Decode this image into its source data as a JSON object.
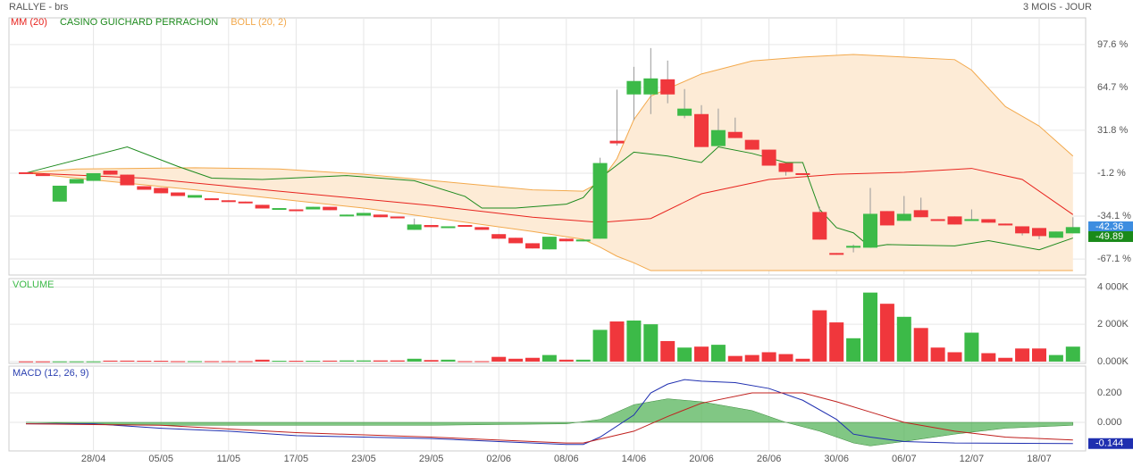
{
  "chart_data": [
    {
      "type": "candlestick",
      "title": "RALLYE - brs",
      "subtitle": "3 MOIS - JOUR",
      "categories": [
        null,
        null,
        null,
        null,
        "28/04",
        null,
        null,
        null,
        "05/05",
        null,
        null,
        null,
        "11/05",
        null,
        null,
        null,
        "17/05",
        null,
        null,
        null,
        "23/05",
        null,
        null,
        null,
        "29/05",
        null,
        null,
        null,
        "02/06",
        null,
        null,
        null,
        "08/06",
        null,
        null,
        null,
        "14/06",
        null,
        null,
        null,
        "20/06",
        null,
        null,
        null,
        "26/06",
        null,
        null,
        null,
        "30/06",
        null,
        null,
        null,
        "06/07",
        null,
        null,
        null,
        "12/07",
        null,
        null,
        null,
        "18/07",
        null,
        null
      ],
      "open": [
        -0.5,
        -2,
        -23,
        -9.1,
        -7.1,
        0.8,
        -2.3,
        -11.2,
        -12.5,
        -16,
        -20,
        -20.5,
        -22,
        -23,
        -25.5,
        -28.5,
        -29,
        -29,
        -27,
        -33.5,
        -33.8,
        -33,
        -34.5,
        -44.7,
        -41,
        -43.3,
        -41,
        -42.6,
        -48,
        -50.8,
        -55,
        -59.7,
        -51.5,
        -53.5,
        -51.5,
        23.7,
        59.3,
        59.3,
        70.9,
        42.9,
        44.2,
        19.6,
        30.5,
        24.4,
        16.9,
        6.6,
        -1.2,
        -31,
        -62.5,
        -58.4,
        -58.4,
        -30.3,
        -37.8,
        -29.6,
        -36.5,
        -34.4,
        -37.8,
        -36.5,
        -39.9,
        -42,
        -43.3,
        -50.8,
        -47.4
      ],
      "high": [
        -0.5,
        -2,
        -10.8,
        -5.7,
        -1.2,
        0.8,
        -2.3,
        -11.2,
        -12.5,
        -16,
        -18,
        -20.5,
        -22,
        -23,
        -25.5,
        -28,
        -29,
        -27,
        -27,
        -33,
        -31.7,
        -33,
        -34.5,
        -36,
        -41,
        -42,
        -41,
        -42.6,
        -48,
        -50.8,
        -55,
        -50,
        -51.5,
        -52.2,
        10.7,
        63,
        80.5,
        94.9,
        85.3,
        63.4,
        51.1,
        48.4,
        41.5,
        24.4,
        16.9,
        6.6,
        -1.2,
        -27,
        -62.5,
        -56,
        -12.5,
        -30.3,
        -18.7,
        -20,
        -36.5,
        -34.4,
        -29,
        -36.5,
        -39.9,
        -42,
        -43.3,
        -46,
        -35
      ],
      "low": [
        -1.5,
        -2.5,
        -23,
        -9.1,
        -7.1,
        -2.3,
        -10.5,
        -13.9,
        -16.6,
        -18.7,
        -20,
        -21.5,
        -22.5,
        -24,
        -28.3,
        -28.5,
        -29.3,
        -29,
        -29.6,
        -33.5,
        -33.8,
        -35,
        -35.8,
        -44.7,
        -42.6,
        -43.3,
        -42,
        -44.7,
        -51.5,
        -55,
        -59,
        -59.7,
        -53.5,
        -53.5,
        -51.5,
        20,
        39.5,
        44.2,
        52.5,
        41,
        18.9,
        19.6,
        25.8,
        16.9,
        4.6,
        -3,
        -1.5,
        -52.2,
        -63.8,
        -62,
        -58.4,
        -41.3,
        -37.8,
        -35,
        -37,
        -40.6,
        -37.8,
        -39.2,
        -41.3,
        -49,
        -52,
        -50.8,
        -47.4
      ],
      "close": [
        -1.5,
        -2.5,
        -10.8,
        -5.7,
        -1.2,
        -2.3,
        -10.5,
        -13.9,
        -16.6,
        -18.7,
        -18,
        -21.5,
        -22.5,
        -24,
        -28.3,
        -28,
        -29.3,
        -27,
        -29.6,
        -33,
        -31.7,
        -35,
        -35.8,
        -40.6,
        -42.6,
        -42,
        -42,
        -44.7,
        -51.5,
        -55,
        -59,
        -50,
        -53.5,
        -52.2,
        6.6,
        21.7,
        69.6,
        71.6,
        59.3,
        48.4,
        18.9,
        31.9,
        25.8,
        16.9,
        4.6,
        -0.2,
        -1.5,
        -52.2,
        -63.8,
        -57,
        -32.4,
        -41.3,
        -32.4,
        -35,
        -37,
        -40.6,
        -36.5,
        -39.2,
        -41.3,
        -47.4,
        -49.5,
        -46,
        -42.6
      ],
      "up_color": "#3cba48",
      "down_color": "#f0373c",
      "series": [
        {
          "name": "MM (20)",
          "color": "#e8231e",
          "x": [
            0,
            7,
            15,
            24,
            30,
            34,
            37,
            40,
            44,
            48,
            52,
            56,
            59,
            62
          ],
          "values": [
            -1,
            -5,
            -15,
            -26,
            -35,
            -39,
            -36,
            -17,
            -6,
            -2,
            -0.5,
            2.5,
            -6,
            -33
          ]
        },
        {
          "name": "CASINO GUICHARD PERRACHON",
          "color": "#1d8a1d",
          "x": [
            0,
            6,
            9,
            11,
            14,
            19,
            23,
            26,
            27,
            29,
            32,
            33,
            34,
            36,
            38,
            40,
            41,
            43,
            45,
            46,
            47,
            48,
            49,
            50,
            51,
            55,
            57,
            60,
            62
          ],
          "values": [
            -1,
            19,
            4,
            -5,
            -6,
            -3,
            -7,
            -19,
            -28,
            -28,
            -25,
            -20,
            -5,
            15,
            12,
            7,
            19,
            14,
            7,
            7,
            -29,
            -43,
            -47,
            -58,
            -56,
            -57,
            -53,
            -60,
            -51
          ]
        },
        {
          "name": "BOLL (20, 2)",
          "color": "#f3a94c",
          "fill": "#fdebd6",
          "x": [
            0,
            3,
            10,
            15,
            20,
            25,
            30,
            33,
            34,
            35,
            36,
            37,
            40,
            43,
            46,
            49,
            52,
            55,
            56,
            58,
            60,
            62
          ],
          "upper": [
            -1,
            2,
            3,
            2,
            -2,
            -8,
            -14,
            -15,
            -8,
            10,
            40,
            58,
            75,
            85,
            88,
            90,
            88,
            86,
            78,
            50,
            35,
            12
          ],
          "lower": [
            -1,
            -5,
            -14,
            -21,
            -28,
            -37,
            -46,
            -52,
            -58,
            -65,
            -70,
            -76,
            -76,
            -76,
            -76,
            -76,
            -76,
            -76,
            -76,
            -76,
            -76,
            -76
          ]
        }
      ],
      "ylim": [
        -79.4,
        118.1
      ],
      "yticks": [
        {
          "value": 97.6,
          "label": "97.6 %"
        },
        {
          "value": 64.7,
          "label": "64.7 %"
        },
        {
          "value": 31.8,
          "label": "31.8 %"
        },
        {
          "value": -1.2,
          "label": "-1.2 %"
        },
        {
          "value": -34.1,
          "label": "-34.1 %"
        },
        {
          "value": -67.1,
          "label": "-67.1 %"
        }
      ],
      "last_labels": [
        {
          "value": -42.36,
          "color": "#3d8de0"
        },
        {
          "value": -49.89,
          "color": "#1a8a1a"
        }
      ],
      "grid": true
    },
    {
      "type": "bar",
      "title": "VOLUME",
      "title_color": "#3cba48",
      "values": [
        10,
        10,
        10,
        10,
        10,
        50,
        50,
        40,
        40,
        20,
        20,
        20,
        20,
        20,
        100,
        40,
        40,
        40,
        50,
        60,
        60,
        60,
        60,
        150,
        80,
        100,
        20,
        20,
        250,
        150,
        200,
        350,
        100,
        100,
        1700,
        2150,
        2200,
        2000,
        1100,
        750,
        800,
        900,
        300,
        350,
        500,
        400,
        150,
        2750,
        2100,
        1250,
        3700,
        3100,
        2400,
        1800,
        750,
        500,
        1550,
        450,
        200,
        700,
        700,
        350,
        800
      ],
      "ylim": [
        -100,
        4450
      ],
      "yticks": [
        {
          "value": 4000,
          "label": "4 000K"
        },
        {
          "value": 2000,
          "label": "2 000K"
        },
        {
          "value": 0,
          "label": "0.000K"
        }
      ],
      "grid": true
    },
    {
      "type": "macd",
      "title": "MACD (12, 26, 9)",
      "title_color": "#2a3fb0",
      "series": [
        {
          "name": "MACD",
          "color": "#1f2fb0",
          "x": [
            0,
            4,
            8,
            12,
            16,
            20,
            24,
            28,
            32,
            33,
            34,
            36,
            37,
            38,
            39,
            40,
            42,
            44,
            46,
            48,
            49,
            50,
            52,
            55,
            62
          ],
          "values": [
            -0.01,
            -0.01,
            -0.04,
            -0.06,
            -0.09,
            -0.1,
            -0.11,
            -0.13,
            -0.15,
            -0.15,
            -0.1,
            0.05,
            0.2,
            0.26,
            0.29,
            0.28,
            0.27,
            0.23,
            0.15,
            0.02,
            -0.08,
            -0.1,
            -0.13,
            -0.14,
            -0.144
          ]
        },
        {
          "name": "Signal",
          "color": "#c0201e",
          "x": [
            0,
            8,
            16,
            24,
            32,
            33,
            36,
            38,
            40,
            43,
            46,
            48,
            50,
            52,
            55,
            58,
            62
          ],
          "values": [
            -0.01,
            -0.02,
            -0.07,
            -0.1,
            -0.14,
            -0.14,
            -0.06,
            0.04,
            0.13,
            0.2,
            0.2,
            0.14,
            0.07,
            0,
            -0.06,
            -0.1,
            -0.12
          ]
        },
        {
          "name": "Histogram",
          "color": "#4caf50",
          "x": [
            0,
            8,
            16,
            24,
            32,
            34,
            36,
            38,
            40,
            43,
            45,
            47,
            49,
            50,
            52,
            55,
            58,
            62
          ],
          "values": [
            0,
            -0.02,
            -0.02,
            -0.02,
            -0.01,
            0.02,
            0.12,
            0.16,
            0.14,
            0.08,
            0,
            -0.06,
            -0.14,
            -0.16,
            -0.13,
            -0.08,
            -0.04,
            -0.02
          ]
        }
      ],
      "ylim": [
        -0.194,
        0.382
      ],
      "yticks": [
        {
          "value": 0.2,
          "label": "0.200"
        },
        {
          "value": 0,
          "label": "0.000"
        }
      ],
      "last_labels": [
        {
          "value": -0.144,
          "color": "#1f2fb0"
        }
      ],
      "grid": true
    }
  ]
}
